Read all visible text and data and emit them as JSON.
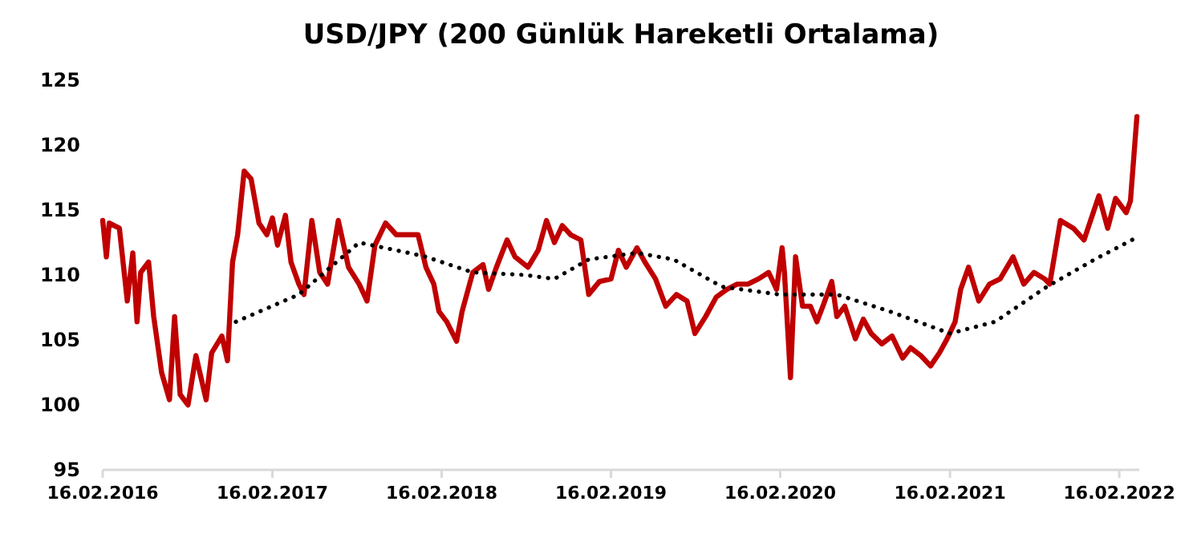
{
  "chart_data": {
    "type": "line",
    "title": "USD/JPY (200 Günlük Hareketli Ortalama)",
    "xlim": [
      "2016-02-16",
      "2022-03-31"
    ],
    "ylim": [
      95,
      125
    ],
    "yticks": [
      95,
      100,
      105,
      110,
      115,
      120,
      125
    ],
    "xticks": [
      {
        "value": "2016-02-16",
        "label": "16.02.2016"
      },
      {
        "value": "2017-02-16",
        "label": "16.02.2017"
      },
      {
        "value": "2018-02-16",
        "label": "16.02.2018"
      },
      {
        "value": "2019-02-16",
        "label": "16.02.2019"
      },
      {
        "value": "2020-02-16",
        "label": "16.02.2020"
      },
      {
        "value": "2021-02-16",
        "label": "16.02.2021"
      },
      {
        "value": "2022-02-16",
        "label": "16.02.2022"
      }
    ],
    "grid": false,
    "series": [
      {
        "color": "#c00000",
        "line_style": "solid",
        "x": [
          "2016-02-16",
          "2016-02-24",
          "2016-03-01",
          "2016-03-23",
          "2016-04-09",
          "2016-04-21",
          "2016-04-30",
          "2016-05-08",
          "2016-05-25",
          "2016-06-05",
          "2016-06-22",
          "2016-07-09",
          "2016-07-20",
          "2016-08-01",
          "2016-08-18",
          "2016-09-04",
          "2016-09-26",
          "2016-10-08",
          "2016-10-30",
          "2016-11-11",
          "2016-11-22",
          "2016-12-03",
          "2016-12-17",
          "2017-01-01",
          "2017-01-18",
          "2017-02-04",
          "2017-02-16",
          "2017-02-27",
          "2017-03-16",
          "2017-03-28",
          "2017-04-14",
          "2017-04-25",
          "2017-05-12",
          "2017-05-29",
          "2017-06-15",
          "2017-07-08",
          "2017-07-30",
          "2017-08-22",
          "2017-09-08",
          "2017-09-25",
          "2017-10-18",
          "2017-11-10",
          "2017-12-08",
          "2017-12-27",
          "2018-01-13",
          "2018-01-30",
          "2018-02-10",
          "2018-02-27",
          "2018-03-20",
          "2018-04-01",
          "2018-04-24",
          "2018-05-16",
          "2018-05-28",
          "2018-06-14",
          "2018-07-07",
          "2018-07-24",
          "2018-08-21",
          "2018-09-12",
          "2018-09-30",
          "2018-10-17",
          "2018-11-03",
          "2018-11-21",
          "2018-12-13",
          "2018-12-30",
          "2019-01-22",
          "2019-02-16",
          "2019-03-04",
          "2019-03-21",
          "2019-04-13",
          "2019-04-30",
          "2019-05-23",
          "2019-06-14",
          "2019-07-07",
          "2019-07-30",
          "2019-08-16",
          "2019-09-08",
          "2019-10-01",
          "2019-10-24",
          "2019-11-15",
          "2019-12-08",
          "2019-12-31",
          "2020-01-22",
          "2020-02-08",
          "2020-02-20",
          "2020-02-25",
          "2020-03-09",
          "2020-03-20",
          "2020-04-04",
          "2020-04-21",
          "2020-05-05",
          "2020-05-20",
          "2020-06-06",
          "2020-06-17",
          "2020-07-04",
          "2020-07-27",
          "2020-08-13",
          "2020-08-30",
          "2020-09-22",
          "2020-10-14",
          "2020-11-06",
          "2020-11-23",
          "2020-12-15",
          "2021-01-05",
          "2021-01-24",
          "2021-02-10",
          "2021-02-27",
          "2021-03-11",
          "2021-03-28",
          "2021-04-19",
          "2021-05-12",
          "2021-06-04",
          "2021-07-02",
          "2021-07-25",
          "2021-08-16",
          "2021-09-08",
          "2021-09-19",
          "2021-10-12",
          "2021-11-09",
          "2021-12-02",
          "2022-01-03",
          "2022-01-22",
          "2022-02-08",
          "2022-03-03",
          "2022-03-12",
          "2022-03-26"
        ],
        "values": [
          114.2,
          111.4,
          114,
          113.6,
          108,
          111.7,
          106.4,
          110.2,
          111,
          106.8,
          102.5,
          100.4,
          106.8,
          100.8,
          100,
          103.8,
          100.4,
          104,
          105.3,
          103.4,
          111,
          113.1,
          118,
          117.4,
          114,
          113.1,
          114.4,
          112.3,
          114.6,
          111,
          109.3,
          108.5,
          114.2,
          110.2,
          109.3,
          114.2,
          110.6,
          109.3,
          108,
          112.3,
          114,
          113.1,
          113.1,
          113.1,
          110.6,
          109.3,
          107.2,
          106.4,
          104.9,
          107.2,
          110.2,
          110.8,
          108.9,
          110.6,
          112.7,
          111.4,
          110.6,
          111.9,
          114.2,
          112.5,
          113.8,
          113.1,
          112.7,
          108.5,
          109.5,
          109.7,
          111.9,
          110.6,
          112.1,
          111,
          109.7,
          107.6,
          108.5,
          108,
          105.5,
          106.8,
          108.3,
          108.9,
          109.3,
          109.3,
          109.7,
          110.2,
          108.9,
          112.1,
          110.2,
          102.1,
          111.4,
          107.6,
          107.6,
          106.4,
          107.8,
          109.5,
          106.8,
          107.6,
          105.1,
          106.6,
          105.5,
          104.7,
          105.3,
          103.6,
          104.4,
          103.8,
          103,
          104,
          105.1,
          106.4,
          108.9,
          110.6,
          108,
          109.3,
          109.7,
          111.4,
          109.3,
          110.2,
          109.7,
          109.3,
          114.2,
          113.6,
          112.7,
          116.1,
          113.6,
          115.9,
          114.8,
          115.7,
          122.2
        ]
      },
      {
        "color": "#000000",
        "line_style": "dotted",
        "x": [
          "2016-11-29",
          "2017-04-14",
          "2017-08-22",
          "2017-12-07",
          "2018-01-13",
          "2018-04-24",
          "2018-08-15",
          "2018-10-17",
          "2018-12-30",
          "2019-04-13",
          "2019-07-01",
          "2019-10-13",
          "2020-02-14",
          "2020-06-17",
          "2020-10-09",
          "2021-02-16",
          "2021-05-24",
          "2021-09-13",
          "2021-12-25",
          "2022-03-26"
        ],
        "values": [
          106.4,
          108.5,
          112.5,
          111.7,
          111.4,
          110.2,
          110,
          109.7,
          111.2,
          111.7,
          111.2,
          109.1,
          108.5,
          108.5,
          107.2,
          105.5,
          106.4,
          109.1,
          111.2,
          112.9
        ]
      }
    ]
  }
}
